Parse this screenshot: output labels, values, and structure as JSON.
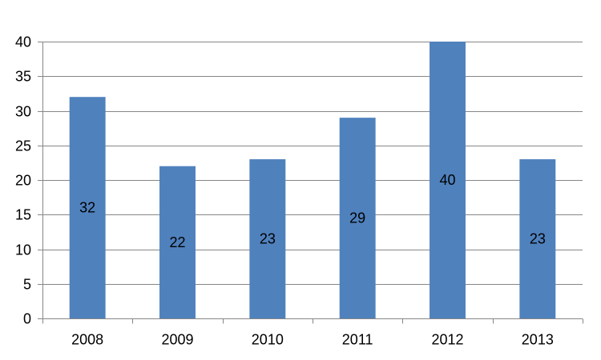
{
  "chart_data": {
    "type": "bar",
    "title": "",
    "xlabel": "",
    "ylabel": "",
    "categories": [
      "2008",
      "2009",
      "2010",
      "2011",
      "2012",
      "2013"
    ],
    "values": [
      32,
      22,
      23,
      29,
      40,
      23
    ],
    "ylim": [
      0,
      40
    ],
    "y_ticks": [
      0,
      5,
      10,
      15,
      20,
      25,
      30,
      35,
      40
    ],
    "grid": "horizontal",
    "legend": "none",
    "data_labels": "center",
    "bar_color": "#4F81BD"
  }
}
